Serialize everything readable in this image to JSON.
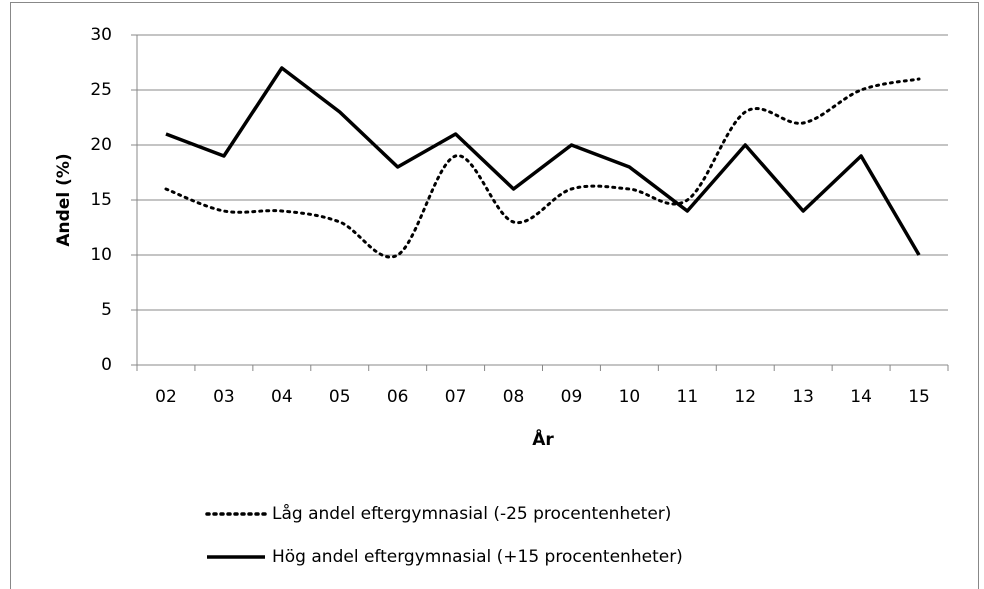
{
  "chart_data": {
    "type": "line",
    "x_label": "År",
    "y_label": "Andel (%)",
    "categories": [
      "02",
      "03",
      "04",
      "05",
      "06",
      "07",
      "08",
      "09",
      "10",
      "11",
      "12",
      "13",
      "14",
      "15"
    ],
    "series": [
      {
        "name": "Låg andel eftergymnasial (-25 procentenheter)",
        "color": "#000000",
        "dash": "dotted",
        "smooth": true,
        "values": [
          16,
          14,
          14,
          13,
          10,
          19,
          13,
          16,
          16,
          15,
          23,
          22,
          25,
          26
        ]
      },
      {
        "name": "Hög andel eftergymnasial (+15 procentenheter)",
        "color": "#000000",
        "dash": "solid",
        "smooth": false,
        "values": [
          21,
          19,
          27,
          23,
          18,
          21,
          16,
          20,
          18,
          14,
          20,
          14,
          19,
          10
        ]
      }
    ],
    "ylim": [
      0,
      30
    ],
    "yticks": [
      0,
      5,
      10,
      15,
      20,
      25,
      30
    ],
    "grid": true,
    "legend": "bottom"
  }
}
